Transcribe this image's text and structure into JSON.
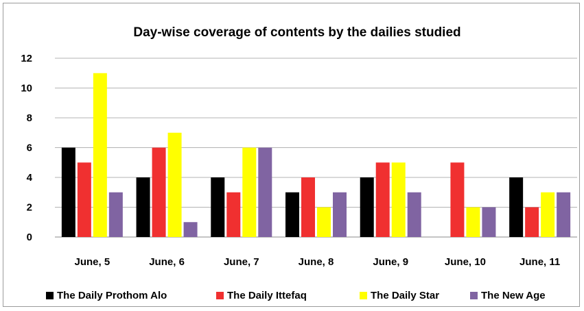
{
  "chart_data": {
    "type": "bar",
    "title": "Day-wise coverage of contents by the dailies studied",
    "xlabel": "",
    "ylabel": "",
    "categories": [
      "June, 5",
      "June, 6",
      "June, 7",
      "June, 8",
      "June, 9",
      "June, 10",
      "June, 11"
    ],
    "series": [
      {
        "name": "The Daily Prothom Alo",
        "color": "#000000",
        "values": [
          6,
          4,
          4,
          3,
          4,
          0,
          4
        ]
      },
      {
        "name": "The Daily Ittefaq",
        "color": "#f03030",
        "values": [
          5,
          6,
          3,
          4,
          5,
          5,
          2
        ]
      },
      {
        "name": "The Daily Star",
        "color": "#ffff00",
        "values": [
          11,
          7,
          6,
          2,
          5,
          2,
          3
        ]
      },
      {
        "name": "The New Age",
        "color": "#8064a2",
        "values": [
          3,
          1,
          6,
          3,
          3,
          2,
          3
        ]
      }
    ],
    "ylim": [
      0,
      12
    ],
    "yticks": [
      0,
      2,
      4,
      6,
      8,
      10,
      12
    ],
    "grid": true,
    "legend_position": "bottom"
  }
}
